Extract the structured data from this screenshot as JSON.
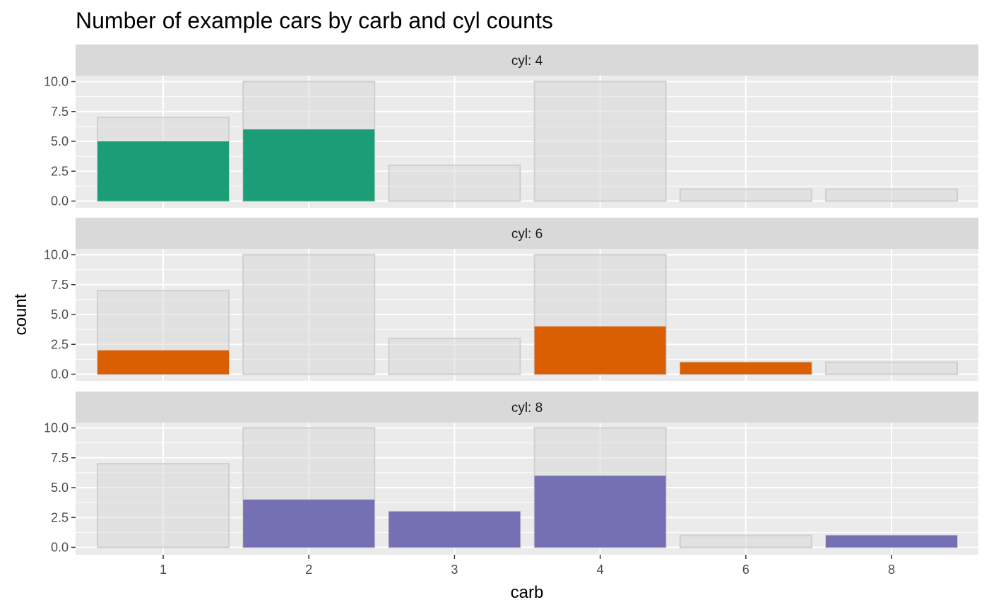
{
  "chart_data": {
    "type": "bar",
    "title": "Number of example cars by carb and cyl counts",
    "xlabel": "carb",
    "ylabel": "count",
    "categories": [
      "1",
      "2",
      "3",
      "4",
      "6",
      "8"
    ],
    "ylim": [
      0,
      10
    ],
    "y_ticks": [
      "0.0",
      "2.5",
      "5.0",
      "7.5",
      "10.0"
    ],
    "background_values": [
      7,
      10,
      3,
      10,
      1,
      1
    ],
    "background_color": "#d9d9d9",
    "panel_background": "#ebebeb",
    "strip_background": "#d9d9d9",
    "grid": true,
    "legend": "none",
    "facets": [
      {
        "label": "cyl: 4",
        "color": "#1b9e77",
        "values": [
          5,
          6,
          0,
          0,
          0,
          0
        ]
      },
      {
        "label": "cyl: 6",
        "color": "#d95f02",
        "values": [
          2,
          0,
          0,
          4,
          1,
          0
        ]
      },
      {
        "label": "cyl: 8",
        "color": "#7570b3",
        "values": [
          0,
          4,
          3,
          6,
          0,
          1
        ]
      }
    ]
  }
}
